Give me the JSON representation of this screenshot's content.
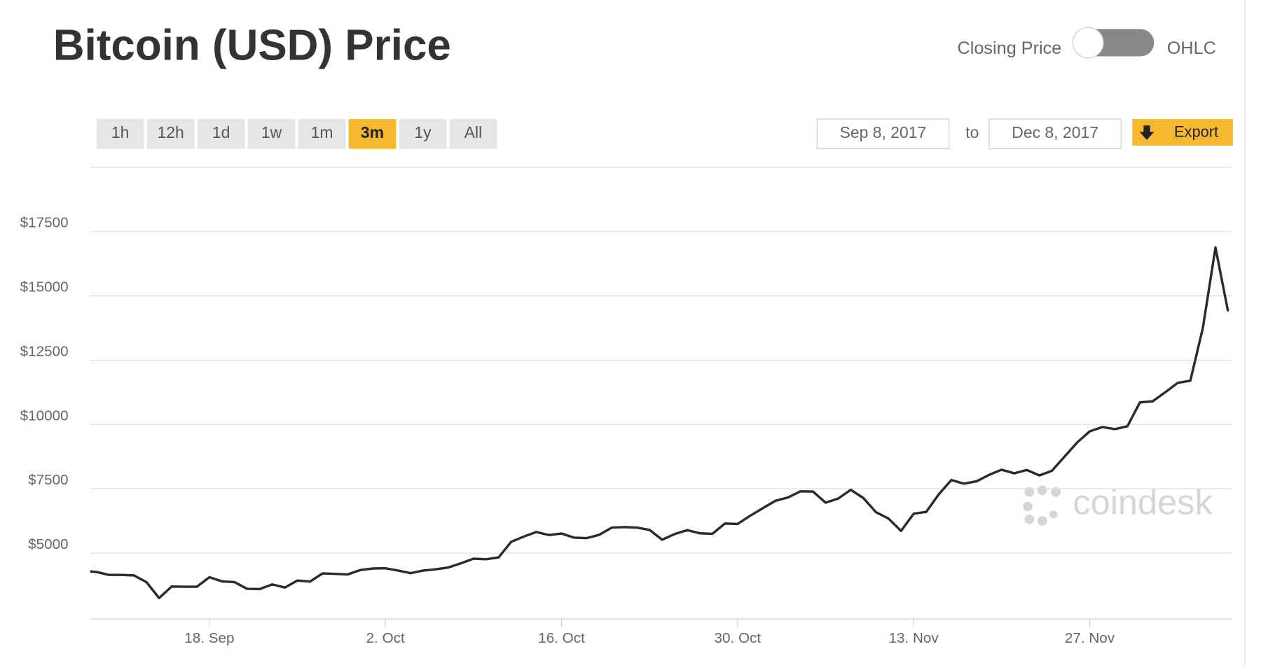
{
  "controls": {
    "toggle_left": "Closing Price",
    "toggle_right": "OHLC",
    "ranges": [
      "1h",
      "12h",
      "1d",
      "1w",
      "1m",
      "3m",
      "1y",
      "All"
    ],
    "active_range": "3m",
    "date_from": "Sep 8, 2017",
    "date_sep": "to",
    "date_to": "Dec 8, 2017",
    "export": "Export",
    "watermark": "coindesk"
  },
  "chart_data": {
    "type": "line",
    "title": "Bitcoin (USD) Price",
    "color": "#2b2b2b",
    "grid": true,
    "x": [
      "Sep 8",
      "Sep 9",
      "Sep 10",
      "Sep 11",
      "Sep 12",
      "Sep 13",
      "Sep 14",
      "Sep 15",
      "Sep 16",
      "Sep 17",
      "Sep 18",
      "Sep 19",
      "Sep 20",
      "Sep 21",
      "Sep 22",
      "Sep 23",
      "Sep 24",
      "Sep 25",
      "Sep 26",
      "Sep 27",
      "Sep 28",
      "Sep 29",
      "Sep 30",
      "Oct 1",
      "Oct 2",
      "Oct 3",
      "Oct 4",
      "Oct 5",
      "Oct 6",
      "Oct 7",
      "Oct 8",
      "Oct 9",
      "Oct 10",
      "Oct 11",
      "Oct 12",
      "Oct 13",
      "Oct 14",
      "Oct 15",
      "Oct 16",
      "Oct 17",
      "Oct 18",
      "Oct 19",
      "Oct 20",
      "Oct 21",
      "Oct 22",
      "Oct 23",
      "Oct 24",
      "Oct 25",
      "Oct 26",
      "Oct 27",
      "Oct 28",
      "Oct 29",
      "Oct 30",
      "Oct 31",
      "Nov 1",
      "Nov 2",
      "Nov 3",
      "Nov 4",
      "Nov 5",
      "Nov 6",
      "Nov 7",
      "Nov 8",
      "Nov 9",
      "Nov 10",
      "Nov 11",
      "Nov 12",
      "Nov 13",
      "Nov 14",
      "Nov 15",
      "Nov 16",
      "Nov 17",
      "Nov 18",
      "Nov 19",
      "Nov 20",
      "Nov 21",
      "Nov 22",
      "Nov 23",
      "Nov 24",
      "Nov 25",
      "Nov 26",
      "Nov 27",
      "Nov 28",
      "Nov 29",
      "Nov 30",
      "Dec 1",
      "Dec 2",
      "Dec 3",
      "Dec 4",
      "Dec 5",
      "Dec 6",
      "Dec 7",
      "Dec 8"
    ],
    "values": [
      4300,
      4270,
      4150,
      4150,
      4130,
      3870,
      3250,
      3700,
      3690,
      3690,
      4060,
      3900,
      3870,
      3610,
      3600,
      3780,
      3660,
      3930,
      3890,
      4210,
      4190,
      4170,
      4340,
      4400,
      4410,
      4320,
      4220,
      4320,
      4370,
      4440,
      4600,
      4780,
      4760,
      4830,
      5440,
      5640,
      5820,
      5700,
      5760,
      5600,
      5580,
      5710,
      5990,
      6010,
      5990,
      5900,
      5520,
      5740,
      5890,
      5770,
      5750,
      6150,
      6130,
      6450,
      6740,
      7030,
      7160,
      7400,
      7390,
      6960,
      7120,
      7460,
      7140,
      6590,
      6340,
      5860,
      6530,
      6600,
      7280,
      7840,
      7700,
      7790,
      8040,
      8240,
      8100,
      8230,
      8020,
      8200,
      8750,
      9300,
      9730,
      9900,
      9820,
      9930,
      10860,
      10900,
      11250,
      11620,
      11700,
      13750,
      16880,
      14400
    ],
    "ylim": [
      2500,
      20000
    ],
    "yticks": [
      {
        "value": 5000,
        "label": "$5000"
      },
      {
        "value": 7500,
        "label": "$7500"
      },
      {
        "value": 10000,
        "label": "$10000"
      },
      {
        "value": 12500,
        "label": "$12500"
      },
      {
        "value": 15000,
        "label": "$15000"
      },
      {
        "value": 17500,
        "label": "$17500"
      }
    ],
    "xticks": [
      {
        "value": "Sep 18",
        "label": "18. Sep"
      },
      {
        "value": "Oct 2",
        "label": "2. Oct"
      },
      {
        "value": "Oct 16",
        "label": "16. Oct"
      },
      {
        "value": "Oct 30",
        "label": "30. Oct"
      },
      {
        "value": "Nov 13",
        "label": "13. Nov"
      },
      {
        "value": "Nov 27",
        "label": "27. Nov"
      }
    ]
  }
}
